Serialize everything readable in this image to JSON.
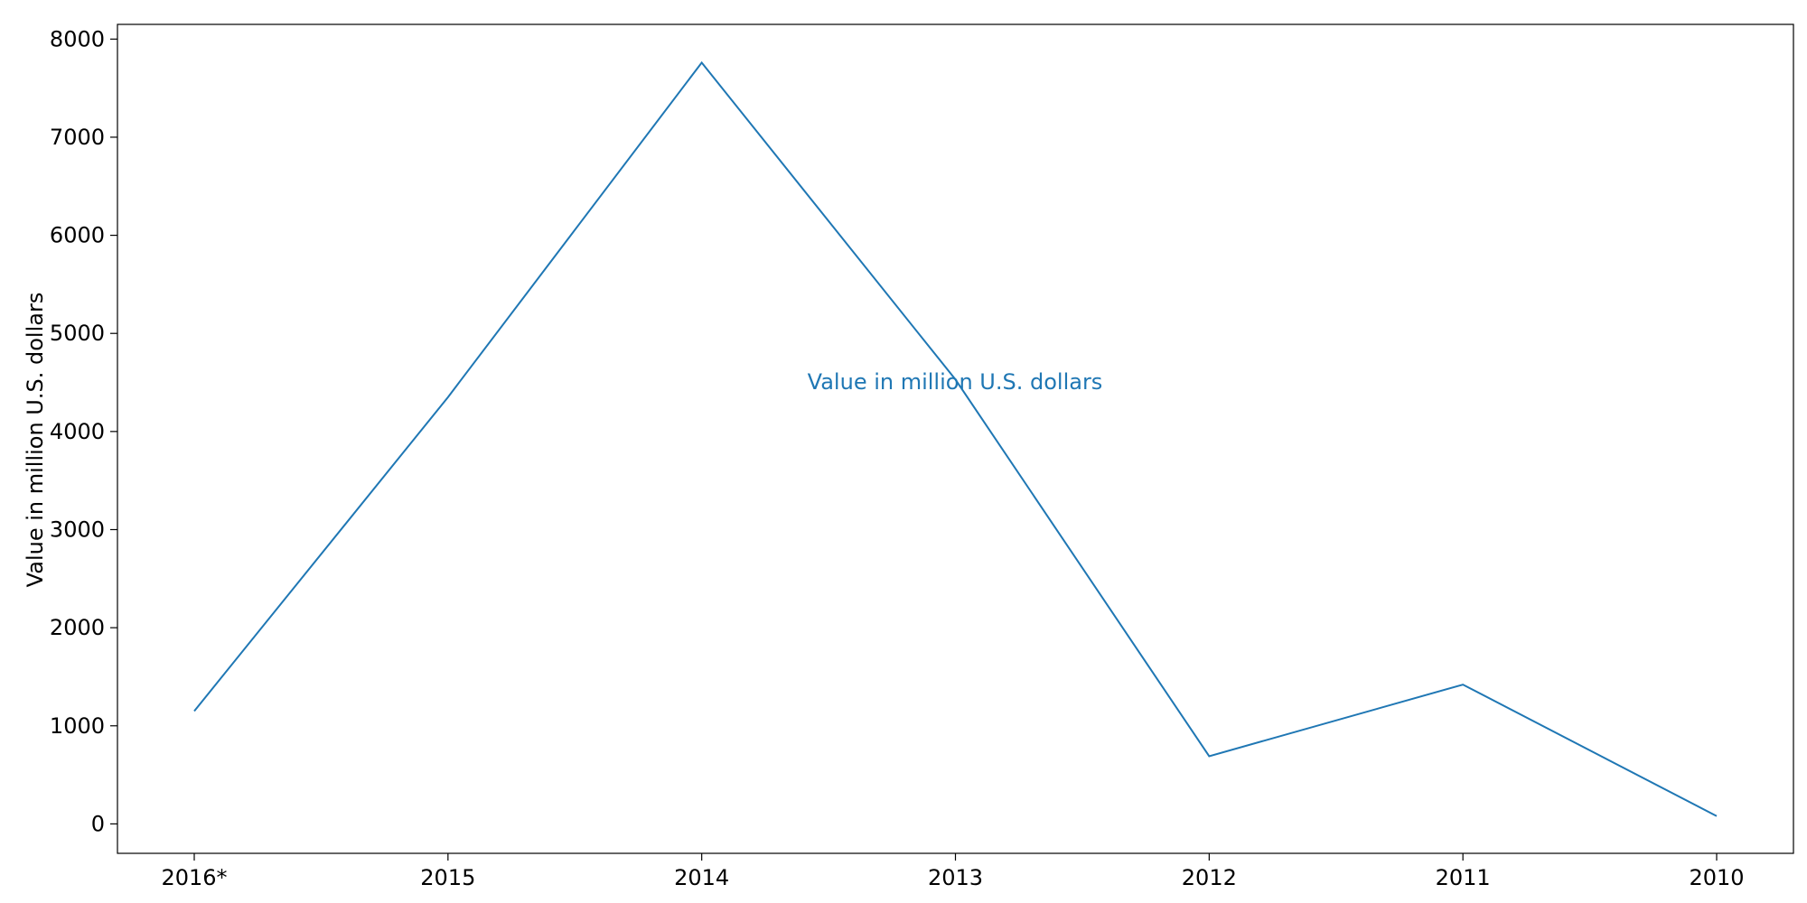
{
  "chart_data": {
    "type": "line",
    "title": "",
    "xlabel": "",
    "ylabel": "Value in million U.S. dollars",
    "categories": [
      "2016*",
      "2015",
      "2014",
      "2013",
      "2012",
      "2011",
      "2010"
    ],
    "series": [
      {
        "name": "Value in million U.S. dollars",
        "values": [
          1150,
          4350,
          7760,
          4530,
          690,
          1420,
          80
        ],
        "color": "#1f77b4"
      }
    ],
    "yticks": [
      0,
      1000,
      2000,
      3000,
      4000,
      5000,
      6000,
      7000,
      8000
    ],
    "ylim": [
      -300,
      8150
    ],
    "grid": false,
    "legend": "none"
  }
}
